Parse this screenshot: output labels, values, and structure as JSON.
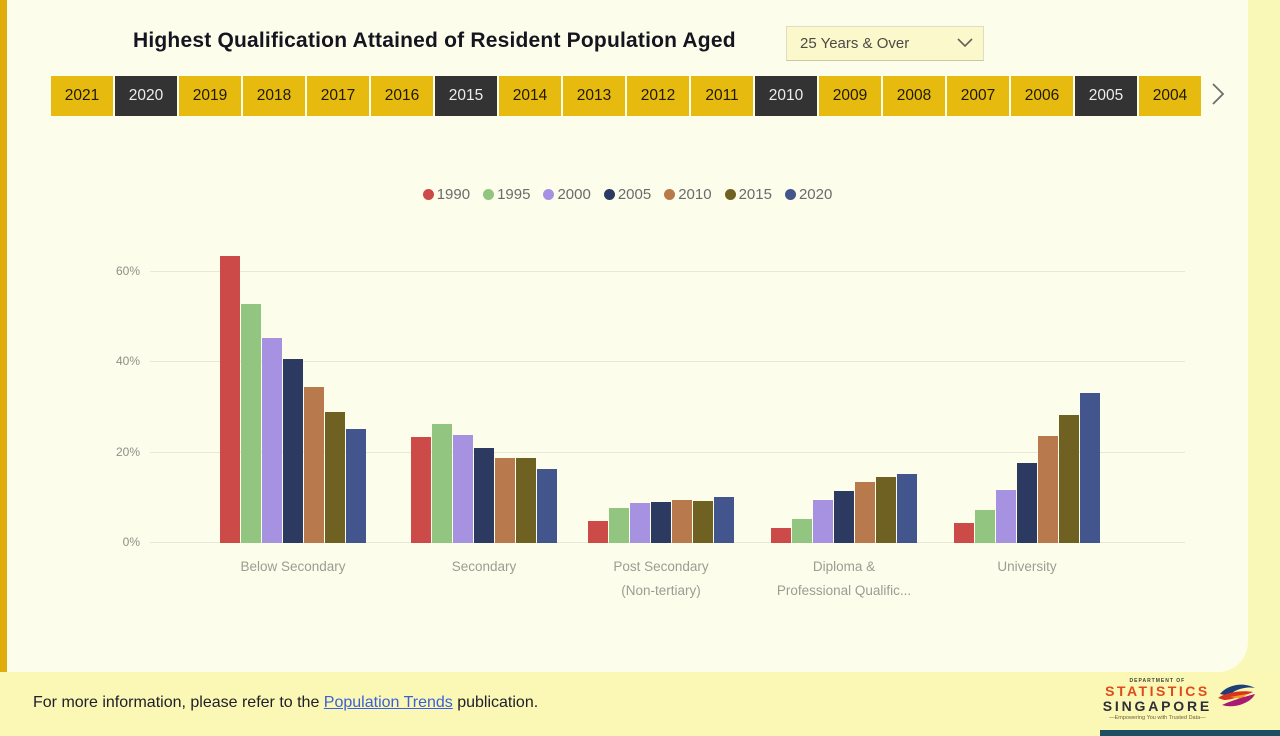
{
  "colors": {
    "page_bg": "#faf8b6",
    "card_bg": "#fdfdec",
    "accent_gold": "#e0ae0c",
    "year_button_bg": "#e7ba10",
    "year_button_selected_bg": "#333333",
    "link_blue": "#3b5fd9"
  },
  "header": {
    "title": "Highest Qualification Attained of Resident Population Aged",
    "age_dropdown": {
      "value": "25 Years & Over"
    }
  },
  "year_bar": {
    "years": [
      {
        "label": "2021",
        "selected": false
      },
      {
        "label": "2020",
        "selected": true
      },
      {
        "label": "2019",
        "selected": false
      },
      {
        "label": "2018",
        "selected": false
      },
      {
        "label": "2017",
        "selected": false
      },
      {
        "label": "2016",
        "selected": false
      },
      {
        "label": "2015",
        "selected": true
      },
      {
        "label": "2014",
        "selected": false
      },
      {
        "label": "2013",
        "selected": false
      },
      {
        "label": "2012",
        "selected": false
      },
      {
        "label": "2011",
        "selected": false
      },
      {
        "label": "2010",
        "selected": true
      },
      {
        "label": "2009",
        "selected": false
      },
      {
        "label": "2008",
        "selected": false
      },
      {
        "label": "2007",
        "selected": false
      },
      {
        "label": "2006",
        "selected": false
      },
      {
        "label": "2005",
        "selected": true
      },
      {
        "label": "2004",
        "selected": false
      }
    ]
  },
  "chart_data": {
    "type": "bar",
    "categories": [
      "Below Secondary",
      "Secondary",
      "Post Secondary (Non-tertiary)",
      "Diploma & Professional Qualific...",
      "University"
    ],
    "category_display_lines": [
      [
        "Below Secondary"
      ],
      [
        "Secondary"
      ],
      [
        "Post Secondary",
        "(Non-tertiary)"
      ],
      [
        "Diploma &",
        "Professional Qualific..."
      ],
      [
        "University"
      ]
    ],
    "series": [
      {
        "name": "1990",
        "color": "#cc4b49",
        "values": [
          63.5,
          23.5,
          4.8,
          3.4,
          4.5
        ]
      },
      {
        "name": "1995",
        "color": "#92c57f",
        "values": [
          52.8,
          26.3,
          7.8,
          5.4,
          7.4
        ]
      },
      {
        "name": "2000",
        "color": "#a792e2",
        "values": [
          45.4,
          24.0,
          8.8,
          9.5,
          11.7
        ]
      },
      {
        "name": "2005",
        "color": "#2c3a62",
        "values": [
          40.7,
          21.0,
          9.1,
          11.4,
          17.6
        ]
      },
      {
        "name": "2010",
        "color": "#b87a4c",
        "values": [
          34.5,
          18.9,
          9.5,
          13.4,
          23.6
        ]
      },
      {
        "name": "2015",
        "color": "#6e6122",
        "values": [
          28.9,
          18.8,
          9.2,
          14.6,
          28.4
        ]
      },
      {
        "name": "2020",
        "color": "#42558c",
        "values": [
          25.3,
          16.3,
          10.1,
          15.3,
          33.1
        ]
      }
    ],
    "yticks": [
      {
        "label": "0%",
        "value": 0
      },
      {
        "label": "20%",
        "value": 20
      },
      {
        "label": "40%",
        "value": 40
      },
      {
        "label": "60%",
        "value": 60
      }
    ],
    "ylim": [
      0,
      65
    ],
    "unit": "%",
    "grid": true,
    "legend_position": "top"
  },
  "footer": {
    "text_before": "For more information, please refer to the ",
    "link_text": "Population Trends",
    "text_after": " publication.",
    "logo": {
      "dept": "DEPARTMENT OF",
      "statistics": "STATISTICS",
      "singapore": "SINGAPORE",
      "tagline": "—Empowering You with Trusted Data—"
    }
  }
}
